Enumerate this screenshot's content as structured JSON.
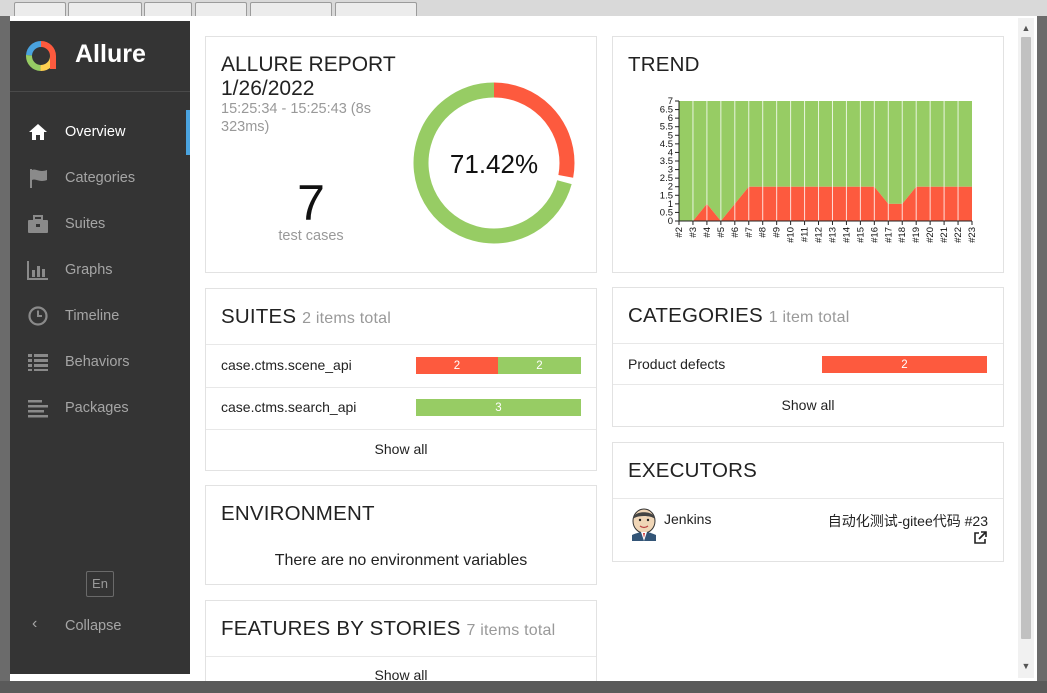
{
  "app": {
    "name": "Allure"
  },
  "sidebar": {
    "items": [
      {
        "label": "Overview",
        "icon": "home-icon"
      },
      {
        "label": "Categories",
        "icon": "flag-icon"
      },
      {
        "label": "Suites",
        "icon": "briefcase-icon"
      },
      {
        "label": "Graphs",
        "icon": "bar-chart-icon"
      },
      {
        "label": "Timeline",
        "icon": "clock-icon"
      },
      {
        "label": "Behaviors",
        "icon": "list-icon"
      },
      {
        "label": "Packages",
        "icon": "align-left-icon"
      }
    ],
    "language": "En",
    "collapse_label": "Collapse"
  },
  "report": {
    "title": "ALLURE REPORT",
    "date": "1/26/2022",
    "time_range_line1": "15:25:34 - 15:25:43 (8s",
    "time_range_line2": "323ms)",
    "test_count": "7",
    "test_count_label": "test cases",
    "pass_percent_label": "71.42%",
    "pass_fraction": 0.7142,
    "colors": {
      "passed": "#97cc64",
      "failed": "#fd5a3e"
    }
  },
  "trend": {
    "title": "TREND",
    "chart_data": {
      "type": "area",
      "title": "TREND",
      "x": [
        "#2",
        "#3",
        "#4",
        "#5",
        "#6",
        "#7",
        "#8",
        "#9",
        "#10",
        "#11",
        "#12",
        "#13",
        "#14",
        "#15",
        "#16",
        "#17",
        "#18",
        "#19",
        "#20",
        "#21",
        "#22",
        "#23"
      ],
      "series": [
        {
          "name": "failed",
          "color": "#fd5a3e",
          "values": [
            0,
            0,
            1,
            0,
            1,
            2,
            2,
            2,
            2,
            2,
            2,
            2,
            2,
            2,
            2,
            1,
            1,
            2,
            2,
            2,
            2,
            2
          ]
        },
        {
          "name": "passed",
          "color": "#97cc64",
          "values": [
            7,
            7,
            6,
            7,
            6,
            5,
            5,
            5,
            5,
            5,
            5,
            5,
            5,
            5,
            5,
            6,
            6,
            5,
            5,
            5,
            5,
            5
          ]
        }
      ],
      "yticks": [
        "0",
        "0.5",
        "1",
        "1.5",
        "2",
        "2.5",
        "3",
        "3.5",
        "4",
        "4.5",
        "5",
        "5.5",
        "6",
        "6.5",
        "7"
      ],
      "ylim": [
        0,
        7
      ]
    }
  },
  "suites": {
    "title": "SUITES",
    "subtitle": "2 items total",
    "rows": [
      {
        "name": "case.ctms.scene_api",
        "failed": 2,
        "passed": 2,
        "failed_label": "2",
        "passed_label": "2"
      },
      {
        "name": "case.ctms.search_api",
        "failed": 0,
        "passed": 3,
        "failed_label": "",
        "passed_label": "3"
      }
    ],
    "show_all": "Show all"
  },
  "categories": {
    "title": "CATEGORIES",
    "subtitle": "1 item total",
    "rows": [
      {
        "name": "Product defects",
        "count": "2"
      }
    ],
    "show_all": "Show all"
  },
  "environment": {
    "title": "ENVIRONMENT",
    "empty_text": "There are no environment variables"
  },
  "executors": {
    "title": "EXECUTORS",
    "name": "Jenkins",
    "build": "自动化测试-gitee代码 #23"
  },
  "features": {
    "title": "FEATURES BY STORIES",
    "subtitle": "7 items total",
    "show_all": "Show all"
  }
}
